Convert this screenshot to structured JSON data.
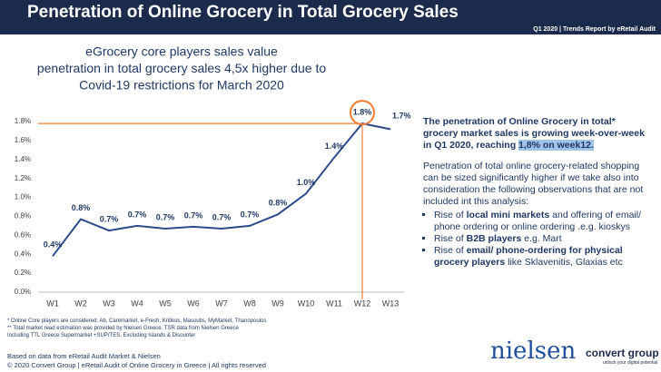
{
  "header": {
    "title": "Penetration of Online Grocery in Total Grocery Sales",
    "subtitle": "Q1 2020 | Trends Report by eRetail Audit"
  },
  "chart_data": {
    "type": "line",
    "title": [
      "eGrocery core players sales value",
      "penetration in total grocery sales 4,5x higher due to",
      "Covid-19 restrictions for March 2020"
    ],
    "categories": [
      "W1",
      "W2",
      "W3",
      "W4",
      "W5",
      "W6",
      "W7",
      "W8",
      "W9",
      "W10",
      "W11",
      "W12",
      "W13"
    ],
    "values": [
      0.38,
      0.77,
      0.65,
      0.7,
      0.67,
      0.69,
      0.67,
      0.7,
      0.82,
      1.04,
      1.42,
      1.78,
      1.72
    ],
    "value_labels": [
      "0.4%",
      "0.8%",
      "0.7%",
      "0.7%",
      "0.7%",
      "0.7%",
      "0.7%",
      "0.7%",
      "0.8%",
      "1.0%",
      "1.4%",
      "1.8%",
      "1.7%"
    ],
    "color": "#2f4a8a",
    "highlight_color": "#ed7d31",
    "ylim": [
      0,
      1.8
    ],
    "yticks": [
      {
        "value": 0,
        "label": "0.0%"
      },
      {
        "value": 0.2,
        "label": "0.2%"
      },
      {
        "value": 0.4,
        "label": "0.4%"
      },
      {
        "value": 0.6,
        "label": "0.6%"
      },
      {
        "value": 0.8,
        "label": "0.8%"
      },
      {
        "value": 1,
        "label": "1.0%"
      },
      {
        "value": 1.2,
        "label": "1.2%"
      },
      {
        "value": 1.4,
        "label": "1.4%"
      },
      {
        "value": 1.6,
        "label": "1.6%"
      },
      {
        "value": 1.8,
        "label": "1.8%"
      }
    ],
    "grid": false
  },
  "insight": {
    "headline": [
      "The penetration of Online Grocery in total* grocery market sales is growing week-over-week in Q1 2020, reaching ",
      "1,8% on week12."
    ],
    "body": "Penetration of total online grocery-related shopping can be sized significantly higher if we take also into consideration the following observations that are not included int this analysis:",
    "bullets": [
      [
        "Rise of ",
        "local mini markets",
        " and offering of email/ phone ordering or online ordering .e.g. kioskys"
      ],
      [
        "Rise of ",
        "B2B players",
        " e.g. Mart"
      ],
      [
        "Rise of ",
        "email/ phone-ordering for physical grocery players",
        " like Sklavenitis, Glaxias etc"
      ]
    ]
  },
  "footer": {
    "notes": [
      "*  Online Core players are considered: Ab, Caremarket, e-Fresh, Kritikos, Masoutis, MyMarket, Thanopoulos",
      "** Total market read estimation was provided by Nielsen Greece. TSR data from Nielsen Greece",
      "Including TTL Greece Supermarket +SUP/TES, Excluding Islands & Disounter"
    ],
    "source": "Based on data from eRetail Audit Market & Nielsen",
    "copyright": "© 2020 Convert Group | eRetail Audit of Online Grocery in Greece | All rights reserved",
    "logos": [
      "nielsen",
      "convert group",
      "unlock your digital potential"
    ]
  }
}
